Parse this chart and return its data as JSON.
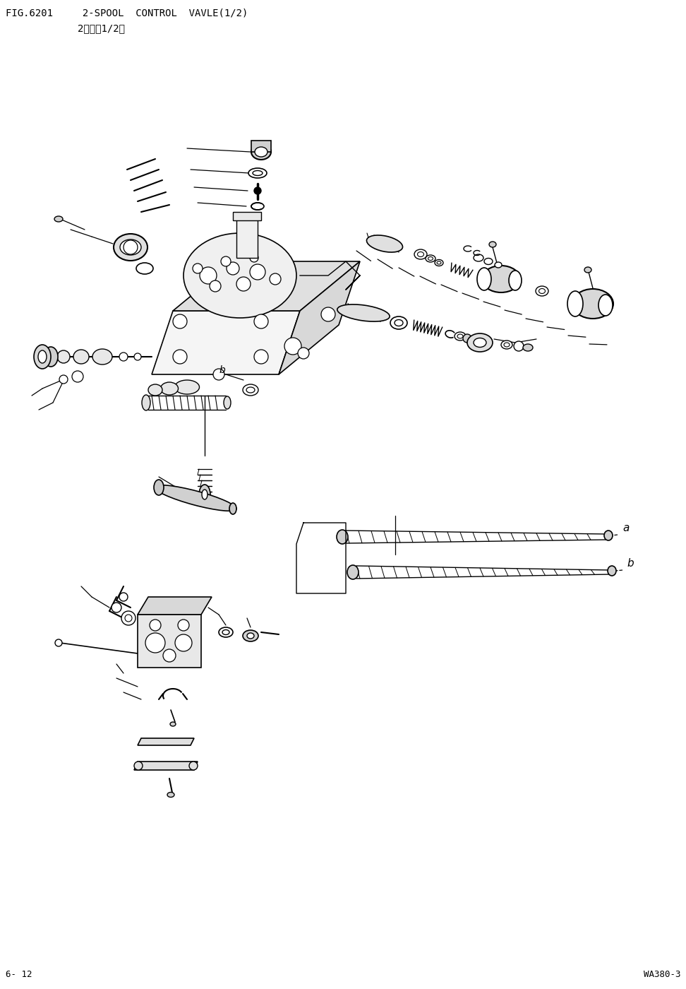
{
  "title_line1": "FIG.6201     2-SPOOL  CONTROL  VAVLE(1/2)",
  "title_line2": "2路阀（1/2）",
  "footer_left": "6- 12",
  "footer_right": "WA380-3",
  "bg_color": "#ffffff",
  "lc": "#000000",
  "label_a": "a",
  "label_b": "b",
  "title_fs": 10,
  "sub_fs": 10,
  "footer_fs": 9
}
